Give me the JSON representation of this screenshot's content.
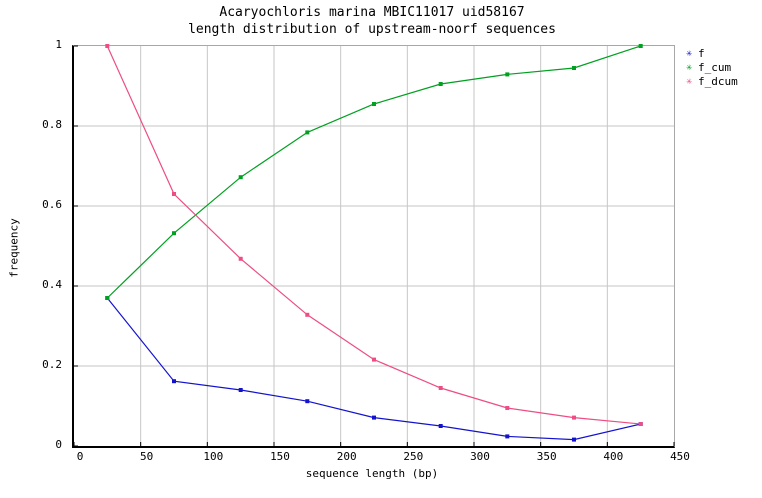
{
  "title": {
    "line1": "Acaryochloris marina MBIC11017 uid58167",
    "line2": "length distribution of upstream-noorf sequences"
  },
  "axes": {
    "x_label": "sequence length (bp)",
    "y_label": "frequency",
    "x_tick_labels": [
      "0",
      "50",
      "100",
      "150",
      "200",
      "250",
      "300",
      "350",
      "400",
      "450"
    ],
    "y_tick_labels": [
      "0",
      "0.2",
      "0.4",
      "0.6",
      "0.8",
      "1"
    ]
  },
  "legend": {
    "marker_glyph": "✳",
    "items": [
      {
        "label": "f",
        "color": "#1313cd"
      },
      {
        "label": "f_cum",
        "color": "#00a020"
      },
      {
        "label": "f_dcum",
        "color": "#ee4c84"
      }
    ]
  },
  "colors": {
    "background": "#ffffff",
    "grid": "#c6c6c6",
    "frame": "#a8a8a8",
    "axis": "#000000",
    "series_f": "#1313cd",
    "series_f_cum": "#00a020",
    "series_f_dcum": "#ee4c84"
  },
  "chart_data": {
    "type": "line",
    "title": "Acaryochloris marina MBIC11017 uid58167 — length distribution of upstream-noorf sequences",
    "xlabel": "sequence length (bp)",
    "ylabel": "frequency",
    "xlim": [
      0,
      450
    ],
    "ylim": [
      0,
      1
    ],
    "grid": true,
    "legend_position": "outside-top-right",
    "x_tick_values": [
      0,
      50,
      100,
      150,
      200,
      250,
      300,
      350,
      400,
      450
    ],
    "y_tick_values": [
      0,
      0.2,
      0.4,
      0.6,
      0.8,
      1
    ],
    "x": [
      25,
      75,
      125,
      175,
      225,
      275,
      325,
      375,
      425
    ],
    "series": [
      {
        "name": "f",
        "color": "#1313cd",
        "values": [
          0.37,
          0.162,
          0.14,
          0.112,
          0.071,
          0.05,
          0.024,
          0.016,
          0.055
        ]
      },
      {
        "name": "f_cum",
        "color": "#00a020",
        "values": [
          0.37,
          0.532,
          0.672,
          0.784,
          0.855,
          0.905,
          0.929,
          0.945,
          1.0
        ]
      },
      {
        "name": "f_dcum",
        "color": "#ee4c84",
        "values": [
          1.0,
          0.63,
          0.468,
          0.328,
          0.216,
          0.145,
          0.095,
          0.071,
          0.055
        ]
      }
    ]
  }
}
